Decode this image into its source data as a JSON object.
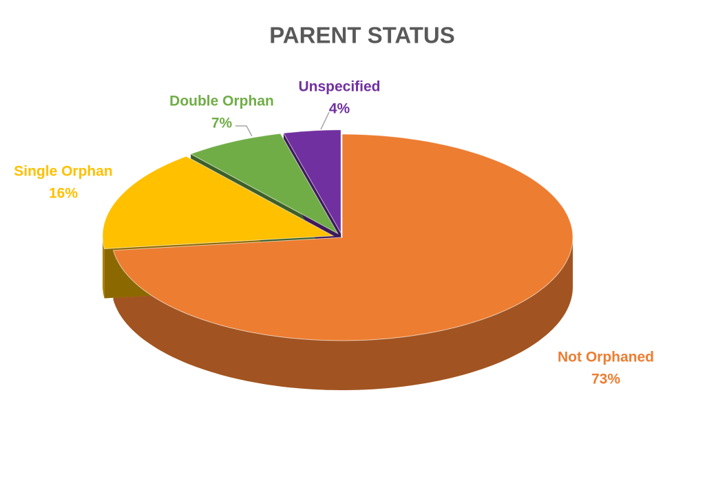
{
  "chart_data": {
    "type": "pie",
    "title": "PARENT STATUS",
    "categories": [
      "Not Orphaned",
      "Single Orphan",
      "Double Orphan",
      "Unspecified"
    ],
    "values": [
      73,
      16,
      7,
      4
    ],
    "value_labels": [
      "73%",
      "16%",
      "7%",
      "4%"
    ],
    "colors": [
      "#ED7D31",
      "#FFC000",
      "#70AD47",
      "#7030A0"
    ]
  }
}
